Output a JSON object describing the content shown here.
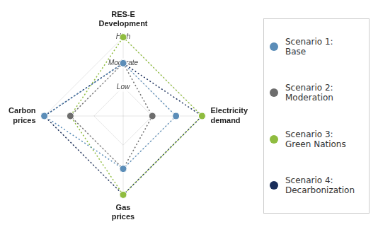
{
  "chart_data": {
    "type": "radar",
    "categories": [
      "RES-E\nDevelopment",
      "Electricity\ndemand",
      "Gas\nprices",
      "Carbon\nprices"
    ],
    "series": [
      {
        "name": "Scenario 1:\nBase",
        "color": "#5b8db8",
        "values": [
          0.67,
          0.67,
          0.67,
          1.0
        ]
      },
      {
        "name": "Scenario 2:\nModeration",
        "color": "#6d6d6d",
        "values": [
          0.67,
          0.37,
          0.67,
          0.67
        ]
      },
      {
        "name": "Scenario 3:\nGreen Nations",
        "color": "#8fbc3f",
        "values": [
          1.0,
          1.0,
          1.0,
          0.67
        ]
      },
      {
        "name": "Scenario 4:\nDecarbonization",
        "color": "#1a2e5a",
        "values": [
          0.67,
          1.0,
          1.0,
          1.0
        ]
      }
    ],
    "ylim": [
      0,
      1
    ],
    "yticks": [
      {
        "value": 0.37,
        "label": "Low"
      },
      {
        "value": 0.67,
        "label": "Moderate"
      },
      {
        "value": 1.0,
        "label": "High"
      }
    ],
    "grid": true,
    "legend": "right",
    "marker": "circle",
    "line_style": "dotted"
  }
}
